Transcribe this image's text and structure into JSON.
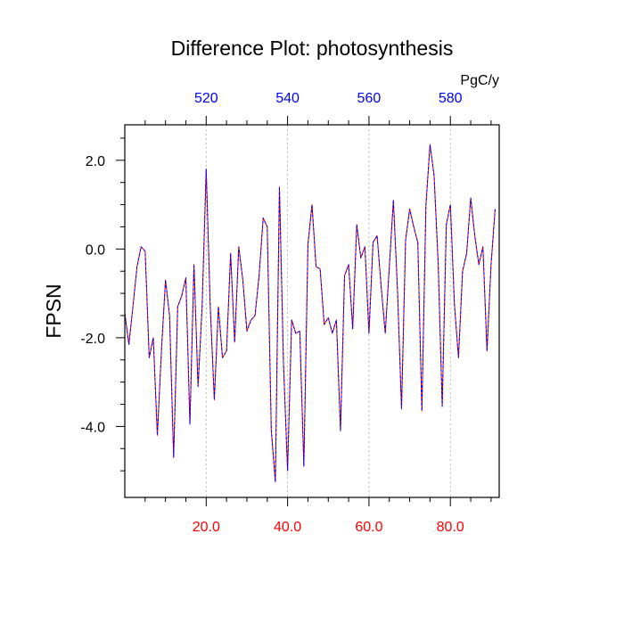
{
  "chart_data": {
    "type": "line",
    "title": "Difference Plot: photosynthesis",
    "ylabel": "FPSN",
    "units": "PgC/y",
    "xlim": [
      0,
      92
    ],
    "ylim": [
      -5.6,
      2.8
    ],
    "grid": "vertical dotted lines at major x ticks",
    "bottom_axis": {
      "color": "#ff0000",
      "ticks": [
        {
          "value": 20,
          "label": "20.0"
        },
        {
          "value": 40,
          "label": "40.0"
        },
        {
          "value": 60,
          "label": "60.0"
        },
        {
          "value": 80,
          "label": "80.0"
        }
      ],
      "minor_ticks": [
        5,
        10,
        15,
        25,
        30,
        35,
        45,
        50,
        55,
        65,
        70,
        75,
        85,
        90
      ]
    },
    "top_axis": {
      "color": "#0000ff",
      "ticks": [
        {
          "value": 20,
          "label": "520"
        },
        {
          "value": 40,
          "label": "540"
        },
        {
          "value": 60,
          "label": "560"
        },
        {
          "value": 80,
          "label": "580"
        }
      ],
      "minor_ticks": [
        5,
        10,
        15,
        25,
        30,
        35,
        45,
        50,
        55,
        65,
        70,
        75,
        85,
        90
      ]
    },
    "left_axis": {
      "ticks": [
        {
          "value": 2,
          "label": "2.0"
        },
        {
          "value": 0,
          "label": "0.0"
        },
        {
          "value": -2,
          "label": "-2.0"
        },
        {
          "value": -4,
          "label": "-4.0"
        }
      ],
      "minor_ticks": [
        2.5,
        1.5,
        1,
        0.5,
        -0.5,
        -1,
        -1.5,
        -2.5,
        -3,
        -3.5,
        -4.5,
        -5
      ]
    },
    "series": [
      {
        "color": "#ff0000",
        "style": "solid",
        "values": [
          -1.45,
          -2.15,
          -1.3,
          -0.4,
          0.05,
          -0.05,
          -2.45,
          -2.0,
          -4.2,
          -2.3,
          -0.7,
          -1.5,
          -4.7,
          -1.3,
          -1.05,
          -0.65,
          -3.95,
          -0.35,
          -3.1,
          -1.3,
          1.8,
          -1.3,
          -3.4,
          -1.3,
          -2.45,
          -2.3,
          -0.1,
          -2.1,
          0.05,
          -0.7,
          -1.85,
          -1.6,
          -1.5,
          -0.6,
          0.7,
          0.5,
          -4.1,
          -5.25,
          1.4,
          -2.6,
          -5.0,
          -1.6,
          -1.9,
          -1.85,
          -4.9,
          0.1,
          1.0,
          -0.4,
          -0.45,
          -1.7,
          -1.55,
          -1.9,
          -1.6,
          -4.1,
          -0.6,
          -0.35,
          -1.8,
          0.55,
          -0.2,
          0.05,
          -1.9,
          0.15,
          0.3,
          -0.85,
          -1.9,
          -0.4,
          1.1,
          -0.9,
          -3.6,
          0.2,
          0.9,
          0.5,
          0.15,
          -3.65,
          1.0,
          2.35,
          1.65,
          -0.3,
          -3.55,
          0.55,
          1.0,
          -1.25,
          -2.45,
          -0.5,
          -0.1,
          1.15,
          0.3,
          -0.35,
          0.05,
          -2.3,
          -0.35,
          0.9
        ]
      },
      {
        "color": "#0000ff",
        "style": "dashed",
        "values": [
          -1.45,
          -2.15,
          -1.3,
          -0.4,
          0.05,
          -0.05,
          -2.45,
          -2.0,
          -4.2,
          -2.3,
          -0.7,
          -1.5,
          -4.7,
          -1.3,
          -1.05,
          -0.65,
          -3.95,
          -0.35,
          -3.1,
          -1.3,
          1.8,
          -1.3,
          -3.4,
          -1.3,
          -2.45,
          -2.3,
          -0.1,
          -2.1,
          0.05,
          -0.7,
          -1.85,
          -1.6,
          -1.5,
          -0.6,
          0.7,
          0.5,
          -4.1,
          -5.25,
          1.4,
          -2.6,
          -5.0,
          -1.6,
          -1.9,
          -1.85,
          -4.9,
          0.1,
          1.0,
          -0.4,
          -0.45,
          -1.7,
          -1.55,
          -1.9,
          -1.6,
          -4.1,
          -0.6,
          -0.35,
          -1.8,
          0.55,
          -0.2,
          0.05,
          -1.9,
          0.15,
          0.3,
          -0.85,
          -1.9,
          -0.4,
          1.1,
          -0.9,
          -3.6,
          0.2,
          0.9,
          0.5,
          0.15,
          -3.65,
          1.0,
          2.35,
          1.65,
          -0.3,
          -3.55,
          0.55,
          1.0,
          -1.25,
          -2.45,
          -0.5,
          -0.1,
          1.15,
          0.3,
          -0.35,
          0.05,
          -2.3,
          -0.35,
          0.9
        ]
      }
    ]
  }
}
